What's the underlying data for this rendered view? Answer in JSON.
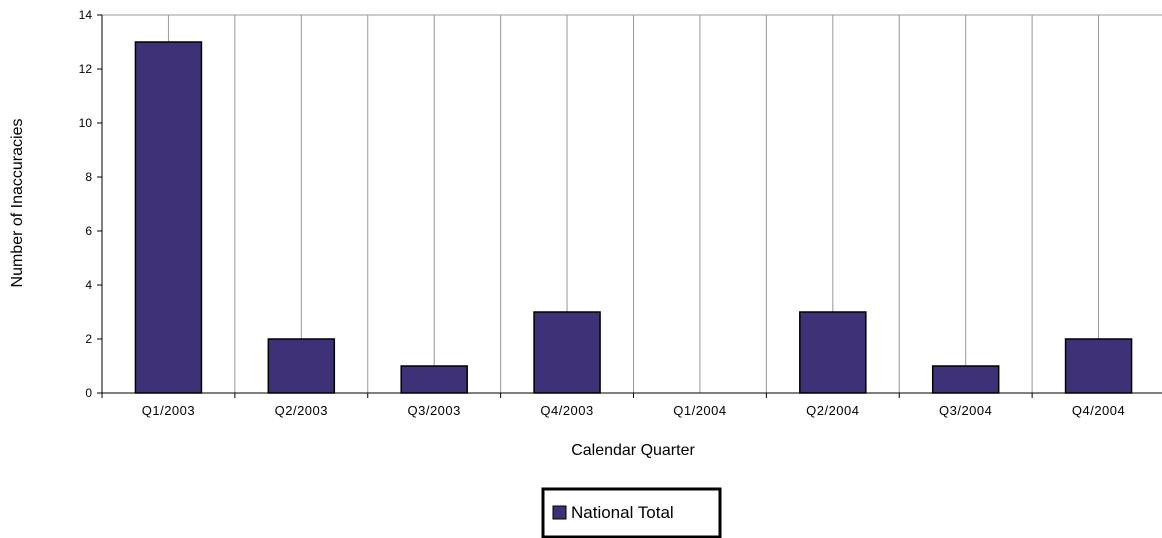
{
  "chart_data": {
    "type": "bar",
    "title": "",
    "xlabel": "Calendar Quarter",
    "ylabel": "Number of Inaccuracies",
    "categories": [
      "Q1/2003",
      "Q2/2003",
      "Q3/2003",
      "Q4/2003",
      "Q1/2004",
      "Q2/2004",
      "Q3/2004",
      "Q4/2004"
    ],
    "series": [
      {
        "name": "National Total",
        "values": [
          13,
          2,
          1,
          3,
          0,
          3,
          1,
          2
        ]
      }
    ],
    "ylim": [
      0,
      14
    ],
    "yticks": [
      0,
      2,
      4,
      6,
      8,
      10,
      12,
      14
    ],
    "grid": "vertical",
    "legend_position": "bottom-center",
    "colors": {
      "bar": "#3f3178",
      "grid": "#999999",
      "axis": "#000000"
    }
  }
}
